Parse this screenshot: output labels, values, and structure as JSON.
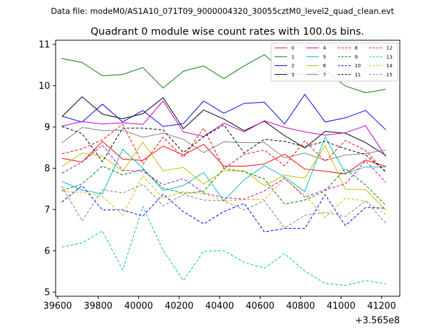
{
  "suptitle": "Data file: modeM0/AS1A10_071T09_9000004320_30055cztM0_level2_quad_clean.evt",
  "chart_data": {
    "type": "line",
    "title": "Quadrant 0 module wise count rates with 100.0s bins.",
    "xlabel": "",
    "ylabel": "",
    "offset_label": "+3.565e8",
    "xlim": [
      39590,
      41290
    ],
    "ylim": [
      4.9,
      11.1
    ],
    "x_ticks": [
      39600,
      39800,
      40000,
      40200,
      40400,
      40600,
      40800,
      41000,
      41200
    ],
    "y_ticks": [
      5,
      6,
      7,
      8,
      9,
      10,
      11
    ],
    "grid": false,
    "legend_placement": "top-right",
    "x": [
      39621,
      39721,
      39821,
      39921,
      40021,
      40121,
      40221,
      40321,
      40421,
      40521,
      40621,
      40721,
      40821,
      40921,
      41021,
      41121,
      41221
    ],
    "series": [
      {
        "name": "0",
        "color": "#ff0000",
        "dash": "solid",
        "values": [
          8.24,
          8.15,
          8.65,
          8.22,
          8.19,
          8.54,
          8.32,
          8.58,
          8.05,
          8.05,
          8.1,
          8.34,
          7.98,
          7.93,
          7.86,
          8.2,
          8.04
        ]
      },
      {
        "name": "1",
        "color": "#008000",
        "dash": "solid",
        "values": [
          10.66,
          10.56,
          10.24,
          10.27,
          10.44,
          9.94,
          10.35,
          10.48,
          10.17,
          10.48,
          10.75,
          10.32,
          10.26,
          10.38,
          9.99,
          9.83,
          9.91
        ]
      },
      {
        "name": "2",
        "color": "#0000ff",
        "dash": "solid",
        "values": [
          9.26,
          9.12,
          9.55,
          9.12,
          9.4,
          9.01,
          9.08,
          9.63,
          9.33,
          9.57,
          9.6,
          9.07,
          9.79,
          9.12,
          9.22,
          9.4,
          8.93
        ]
      },
      {
        "name": "3",
        "color": "#000000",
        "dash": "solid",
        "values": [
          9.25,
          9.73,
          9.31,
          9.2,
          9.32,
          9.71,
          8.96,
          9.41,
          9.19,
          8.91,
          9.14,
          8.79,
          8.49,
          8.89,
          8.85,
          8.62,
          8.31
        ]
      },
      {
        "name": "4",
        "color": "#bf00bf",
        "dash": "solid",
        "values": [
          9.02,
          9.13,
          9.07,
          9.1,
          9.06,
          9.63,
          8.88,
          8.77,
          9.09,
          8.88,
          9.15,
          8.99,
          8.88,
          8.8,
          8.86,
          9.03,
          8.28
        ]
      },
      {
        "name": "5",
        "color": "#00bfbf",
        "dash": "solid",
        "values": [
          7.68,
          7.47,
          7.38,
          8.46,
          8.0,
          7.46,
          7.58,
          7.9,
          7.21,
          7.72,
          8.06,
          7.79,
          7.43,
          8.76,
          7.88,
          8.03,
          8.03
        ]
      },
      {
        "name": "6",
        "color": "#bfbf00",
        "dash": "solid",
        "values": [
          8.04,
          8.37,
          8.29,
          7.93,
          8.63,
          7.94,
          8.02,
          7.62,
          7.94,
          7.94,
          7.58,
          7.83,
          7.76,
          8.55,
          7.49,
          7.48,
          6.99
        ]
      },
      {
        "name": "7",
        "color": "#808080",
        "dash": "solid",
        "values": [
          8.61,
          8.99,
          8.91,
          8.92,
          8.75,
          8.85,
          8.7,
          8.38,
          8.64,
          8.62,
          8.62,
          8.25,
          8.37,
          8.19,
          8.32,
          8.36,
          8.44
        ]
      },
      {
        "name": "8",
        "color": "#ff0000",
        "dash": "dashed",
        "values": [
          8.35,
          8.47,
          8.69,
          9.06,
          8.1,
          8.75,
          8.26,
          8.97,
          7.99,
          8.34,
          8.44,
          8.06,
          8.66,
          8.17,
          8.67,
          8.43,
          7.9
        ]
      },
      {
        "name": "9",
        "color": "#008000",
        "dash": "dashed",
        "values": [
          7.46,
          7.62,
          8.05,
          7.84,
          7.97,
          7.52,
          7.39,
          7.44,
          7.99,
          7.92,
          7.74,
          7.13,
          7.23,
          7.45,
          7.99,
          7.59,
          7.1
        ]
      },
      {
        "name": "10",
        "color": "#0000ff",
        "dash": "dashed",
        "values": [
          7.18,
          7.58,
          6.99,
          6.99,
          6.84,
          7.37,
          6.95,
          6.65,
          6.95,
          7.15,
          6.46,
          6.54,
          6.54,
          7.36,
          6.61,
          7.05,
          7.03
        ]
      },
      {
        "name": "11",
        "color": "#000000",
        "dash": "dashed",
        "values": [
          9.01,
          8.84,
          8.16,
          8.97,
          8.97,
          8.93,
          8.38,
          8.76,
          9.05,
          8.37,
          8.7,
          8.65,
          8.52,
          8.65,
          8.47,
          8.33,
          7.92
        ]
      },
      {
        "name": "12",
        "color": "#bf00bf",
        "dash": "dashed",
        "values": [
          7.88,
          8.15,
          8.56,
          7.95,
          7.93,
          7.6,
          7.75,
          7.4,
          7.29,
          7.25,
          7.45,
          7.76,
          7.3,
          7.48,
          7.62,
          8.18,
          7.66
        ]
      },
      {
        "name": "13",
        "color": "#00bfbf",
        "dash": "dashed",
        "values": [
          6.09,
          6.19,
          6.48,
          5.54,
          7.07,
          6.01,
          5.28,
          5.99,
          6.0,
          5.72,
          5.58,
          5.93,
          5.51,
          5.21,
          5.16,
          5.28,
          5.2
        ]
      },
      {
        "name": "14",
        "color": "#bfbf00",
        "dash": "dashed",
        "values": [
          7.43,
          7.42,
          7.32,
          6.86,
          7.82,
          7.27,
          7.43,
          7.38,
          7.21,
          7.24,
          7.25,
          7.74,
          7.35,
          6.81,
          7.27,
          7.21,
          6.88
        ]
      },
      {
        "name": "15",
        "color": "#808080",
        "dash": "dashed",
        "values": [
          7.57,
          6.72,
          7.48,
          7.4,
          7.61,
          7.09,
          7.36,
          7.23,
          7.21,
          6.99,
          7.21,
          6.55,
          6.86,
          6.93,
          6.83,
          7.21,
          6.67
        ]
      }
    ]
  }
}
